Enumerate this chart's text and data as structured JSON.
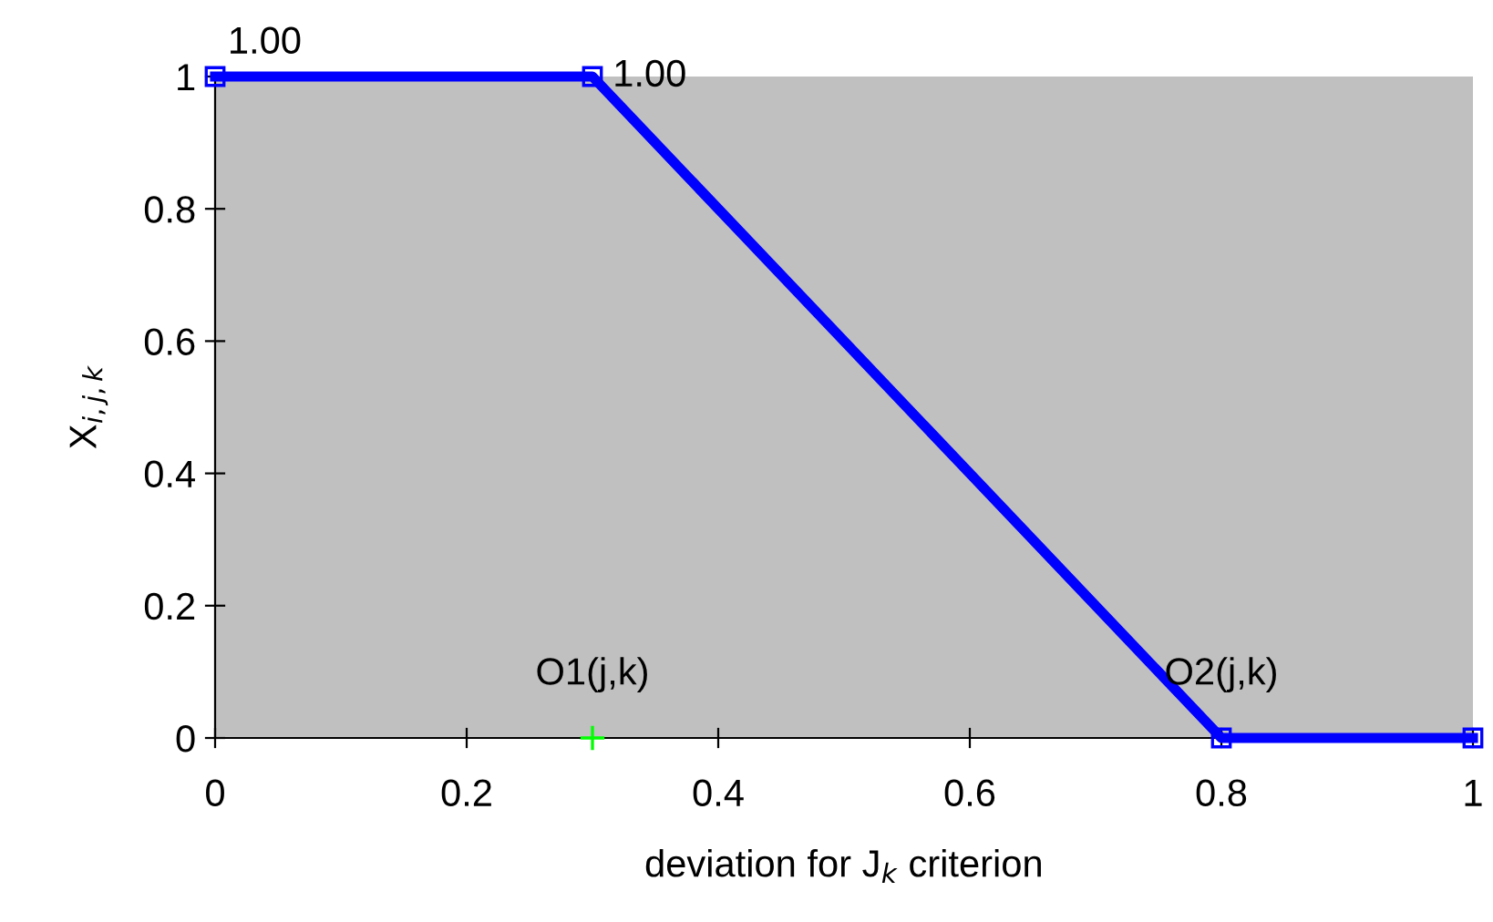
{
  "chart_data": {
    "type": "line",
    "xlabel": "deviation for J$_{k}$ criterion",
    "ylabel": "X$_{i,j,k}$",
    "xlim": [
      0,
      1
    ],
    "ylim": [
      0,
      1
    ],
    "xticks": [
      0,
      0.2,
      0.4,
      0.6,
      0.8,
      1
    ],
    "yticks": [
      0,
      0.2,
      0.4,
      0.6,
      0.8,
      1
    ],
    "grid": false,
    "series": [
      {
        "color": "#0000ff",
        "marker": "square",
        "line_style": "solid",
        "x": [
          0,
          0.3,
          0.8,
          1
        ],
        "values": [
          1,
          1,
          0,
          0
        ],
        "value_labels": [
          "1.00",
          "1.00",
          null,
          null
        ]
      },
      {
        "type": "scatter",
        "color": "#00ff00",
        "marker": "cross",
        "x": [
          0.3
        ],
        "values": [
          0
        ]
      }
    ],
    "annotations": [
      {
        "text": "O1(j,k)",
        "x": 0.3,
        "y": 0
      },
      {
        "text": "O2(j,k)",
        "x": 0.8,
        "y": 0
      }
    ]
  }
}
